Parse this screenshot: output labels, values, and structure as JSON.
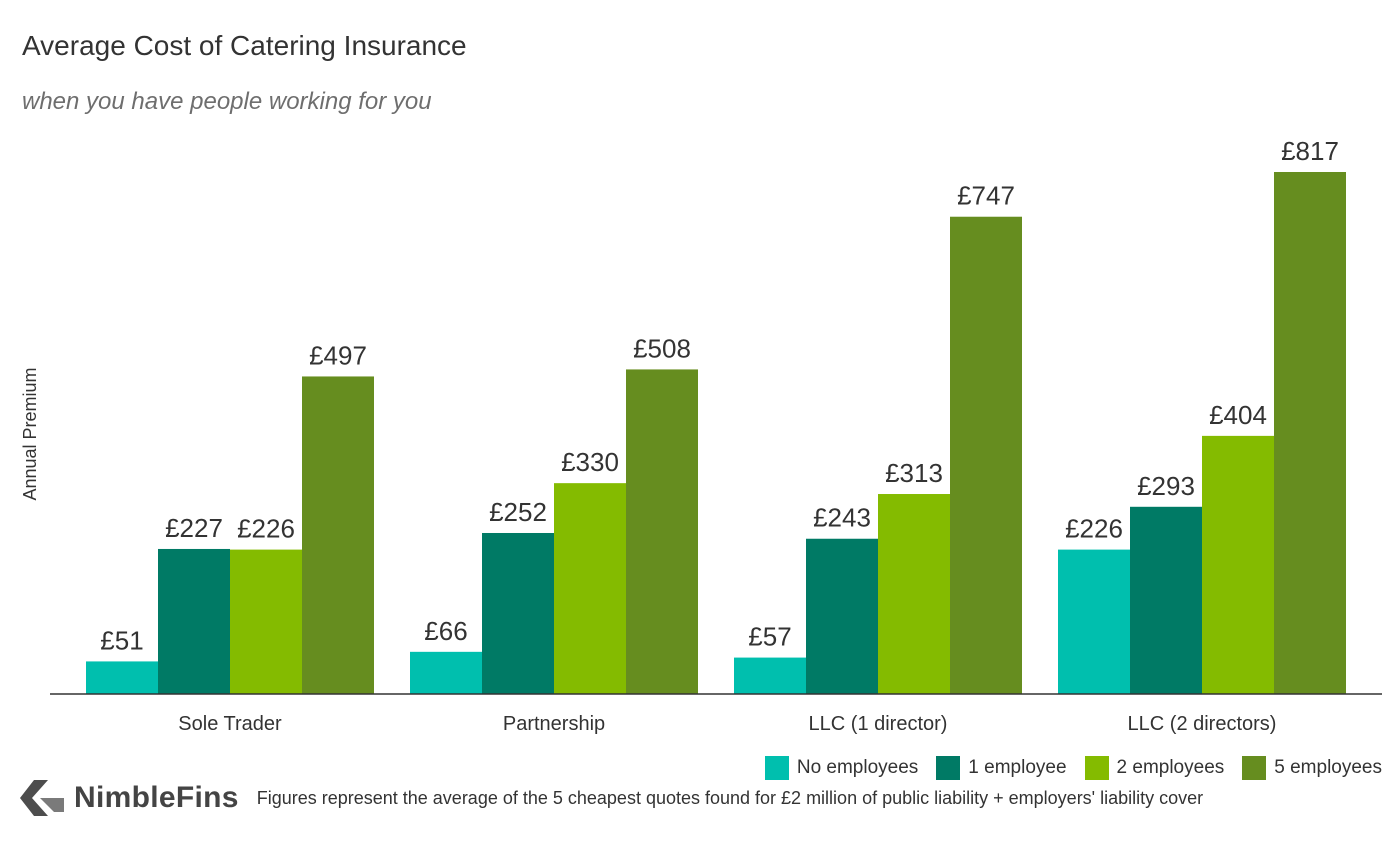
{
  "header": {
    "title": "Average Cost of Catering Insurance",
    "subtitle": "when you have people working for you"
  },
  "chart_data": {
    "type": "bar",
    "title": "Average Cost of Catering Insurance",
    "subtitle": "when you have people working for you",
    "ylabel": "Annual Premium",
    "xlabel": "",
    "currency_prefix": "£",
    "categories": [
      "Sole Trader",
      "Partnership",
      "LLC (1 director)",
      "LLC (2 directors)"
    ],
    "series": [
      {
        "name": "No employees",
        "color": "#00bfae",
        "values": [
          51,
          66,
          57,
          226
        ]
      },
      {
        "name": "1 employee",
        "color": "#007a65",
        "values": [
          227,
          252,
          243,
          293
        ]
      },
      {
        "name": "2 employees",
        "color": "#84bb00",
        "values": [
          226,
          330,
          313,
          404
        ]
      },
      {
        "name": "5 employees",
        "color": "#668d1f",
        "values": [
          497,
          508,
          747,
          817
        ]
      }
    ],
    "ylim": [
      0,
      817
    ],
    "grid": false,
    "legend_position": "bottom-right"
  },
  "footer": {
    "logo_text": "NimbleFins",
    "logo_icon": "nimblefins-chevron-icon",
    "note": "Figures represent the average of the 5 cheapest quotes found for £2 million of public liability + employers' liability cover"
  }
}
